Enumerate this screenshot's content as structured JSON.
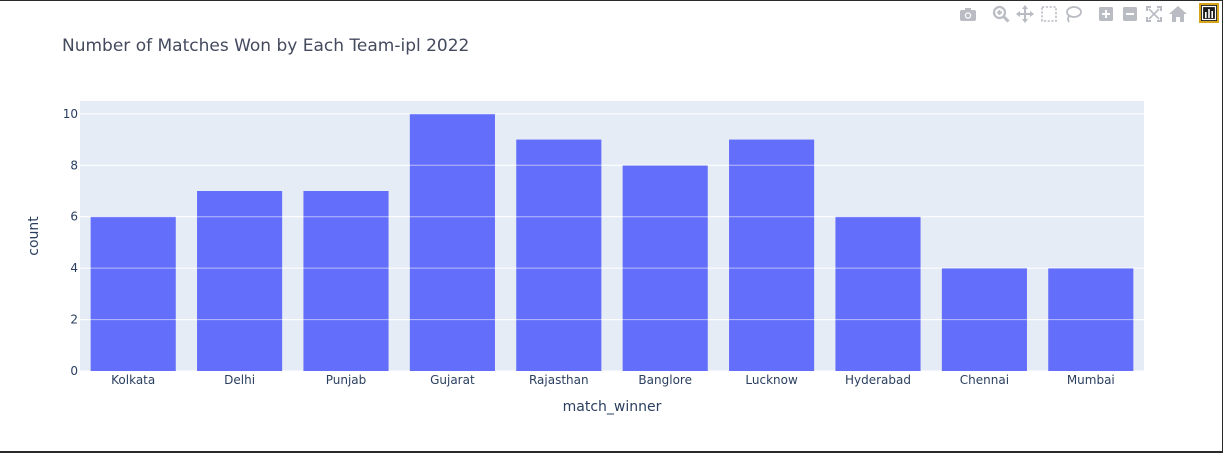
{
  "chart_data": {
    "type": "bar",
    "title": "Number of Matches Won by Each Team-ipl 2022",
    "xlabel": "match_winner",
    "ylabel": "count",
    "categories": [
      "Kolkata",
      "Delhi",
      "Punjab",
      "Gujarat",
      "Rajasthan",
      "Banglore",
      "Lucknow",
      "Hyderabad",
      "Chennai",
      "Mumbai"
    ],
    "values": [
      6,
      7,
      7,
      10,
      9,
      8,
      9,
      6,
      4,
      4
    ],
    "ylim": [
      0,
      10.5
    ],
    "yticks": [
      0,
      2,
      4,
      6,
      8,
      10
    ],
    "grid": true,
    "bar_color": "#636efa",
    "plot_background": "#e5ecf6",
    "grid_color": "#ffffff"
  },
  "modebar": {
    "buttons": [
      "camera-icon",
      "zoom-icon",
      "pan-icon",
      "box-select-icon",
      "lasso-select-icon",
      "zoom-in-icon",
      "zoom-out-icon",
      "autoscale-icon",
      "reset-axes-icon"
    ],
    "extra_button": "bar-chart-icon",
    "icon_color": "#b9bcc3"
  }
}
